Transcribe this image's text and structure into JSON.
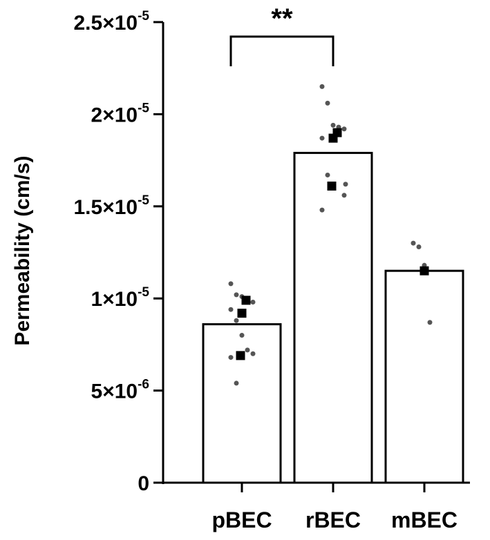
{
  "chart_data": {
    "type": "bar",
    "title": "",
    "xlabel": "",
    "ylabel": "Permeability (cm/s)",
    "ylim": [
      0,
      2.5e-05
    ],
    "y_ticks": [
      {
        "value": 0,
        "mantissa": "0",
        "exponent": ""
      },
      {
        "value": 5e-06,
        "mantissa": "5×10",
        "exponent": "-6"
      },
      {
        "value": 1e-05,
        "mantissa": "1×10",
        "exponent": "-5"
      },
      {
        "value": 1.5e-05,
        "mantissa": "1.5×10",
        "exponent": "-5"
      },
      {
        "value": 2e-05,
        "mantissa": "2×10",
        "exponent": "-5"
      },
      {
        "value": 2.5e-05,
        "mantissa": "2.5×10",
        "exponent": "-5"
      }
    ],
    "categories": [
      "pBEC",
      "rBEC",
      "mBEC"
    ],
    "values": [
      8.6e-06,
      1.79e-05,
      1.15e-05
    ],
    "replicate_points": [
      [
        1.08e-05,
        1.02e-05,
        1.01e-05,
        1e-05,
        9.8e-06,
        9.4e-06,
        8.8e-06,
        8e-06,
        7.2e-06,
        7e-06,
        6.8e-06,
        5.4e-06
      ],
      [
        2.15e-05,
        2.06e-05,
        1.94e-05,
        1.93e-05,
        1.92e-05,
        1.87e-05,
        1.67e-05,
        1.62e-05,
        1.62e-05,
        1.56e-05,
        1.48e-05
      ],
      [
        1.3e-05,
        1.28e-05,
        1.18e-05,
        8.7e-06
      ]
    ],
    "biological_means": [
      [
        9.9e-06,
        9.2e-06,
        6.9e-06
      ],
      [
        1.9e-05,
        1.87e-05,
        1.61e-05
      ],
      [
        1.15e-05
      ]
    ],
    "significance": {
      "from": "pBEC",
      "to": "rBEC",
      "label": "**"
    },
    "grid": false,
    "legend": "none"
  }
}
